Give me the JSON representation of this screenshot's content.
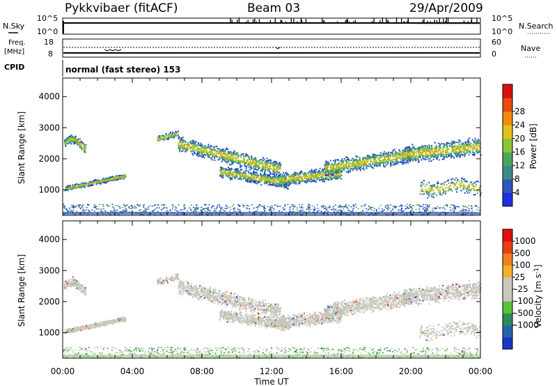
{
  "header": {
    "station": "Pykkvibaer (fitACF)",
    "beam": "Beam 03",
    "date": "29/Apr/2009"
  },
  "top_panels": {
    "nsky_label": "N.Sky",
    "nsky_ticks": [
      "10^5",
      "10^0"
    ],
    "nsearch_label": "N.Search",
    "nsearch_ticks": [
      "10^5",
      "10^0"
    ],
    "freq_label": "Freq.",
    "freq_unit": "[MHz]",
    "freq_ticks": [
      "18",
      "8"
    ],
    "nave_label": "Nave",
    "nave_ticks": [
      "60",
      "0"
    ],
    "cpid_label": "CPID",
    "cpid_text": "normal (fast stereo) 153"
  },
  "chart_data": [
    {
      "type": "heatmap",
      "name": "power-panel",
      "ylabel": "Slant Range [km]",
      "ylim": [
        180,
        4600
      ],
      "yticks": [
        1000,
        2000,
        3000,
        4000
      ],
      "xlim": [
        0,
        24
      ],
      "colorbar": {
        "label": "Power [dB]",
        "ticks": [
          "4",
          "8",
          "12",
          "16",
          "20",
          "24",
          "28"
        ],
        "colors": [
          "#1f2fe0",
          "#2e57b8",
          "#3b8a8a",
          "#4aa55c",
          "#8cc43a",
          "#e3c21d",
          "#f08c12",
          "#e84a10",
          "#d91010"
        ]
      }
    },
    {
      "type": "heatmap",
      "name": "velocity-panel",
      "ylabel": "Slant Range [km]",
      "ylim": [
        180,
        4600
      ],
      "yticks": [
        1000,
        2000,
        3000,
        4000
      ],
      "xlim": [
        0,
        24
      ],
      "xlabel": "Time UT",
      "xticks": [
        "00:00",
        "04:00",
        "08:00",
        "12:00",
        "16:00",
        "20:00",
        "00:00"
      ],
      "colorbar": {
        "label": "Velocity [m s",
        "label_sup": "-1",
        "label_end": "]",
        "ticks": [
          "1000",
          "500",
          "100",
          "25",
          "-25",
          "-100",
          "-500",
          "-1000"
        ],
        "colors": [
          "#1a36c8",
          "#2a64a8",
          "#2e8a5a",
          "#58c43a",
          "#c8c8c0",
          "#c8c8c0",
          "#f0b030",
          "#f08020",
          "#e84010",
          "#e01010"
        ]
      }
    }
  ]
}
